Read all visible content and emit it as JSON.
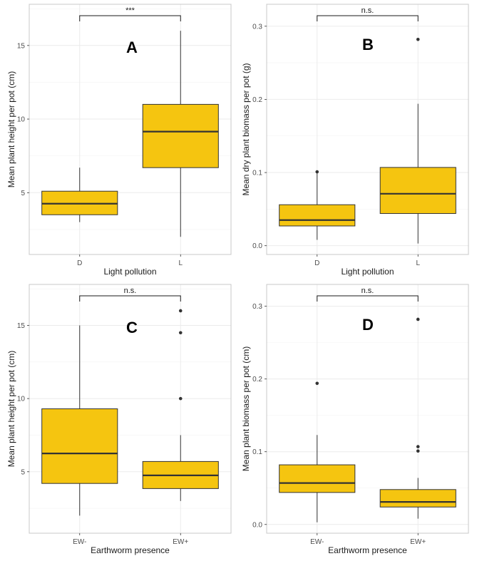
{
  "colors": {
    "box_fill": "#F5C510",
    "box_stroke": "#333333",
    "grid": "#EBEBEB",
    "panel_border": "#C8C8C8"
  },
  "chart_data": [
    {
      "type": "box",
      "panel_label": "A",
      "xlabel": "Light pollution",
      "ylabel": "Mean plant height per pot (cm)",
      "ylim": [
        0.8,
        17.8
      ],
      "yticks": [
        5,
        10,
        15
      ],
      "ytick_labels": [
        "5",
        "10",
        "15"
      ],
      "significance": "***",
      "categories": [
        "D",
        "L"
      ],
      "boxes": [
        {
          "category": "D",
          "whisker_low": 3.0,
          "q1": 3.5,
          "median": 4.25,
          "q3": 5.1,
          "whisker_high": 6.7,
          "outliers": []
        },
        {
          "category": "L",
          "whisker_low": 2.0,
          "q1": 6.7,
          "median": 9.15,
          "q3": 11.0,
          "whisker_high": 16.0,
          "outliers": []
        }
      ]
    },
    {
      "type": "box",
      "panel_label": "B",
      "xlabel": "Light pollution",
      "ylabel": "Mean dry plant biomass per pot (g)",
      "ylim": [
        -0.012,
        0.33
      ],
      "yticks": [
        0.0,
        0.1,
        0.2,
        0.3
      ],
      "ytick_labels": [
        "0.0",
        "0.1",
        "0.2",
        "0.3"
      ],
      "significance": "n.s.",
      "categories": [
        "D",
        "L"
      ],
      "boxes": [
        {
          "category": "D",
          "whisker_low": 0.008,
          "q1": 0.027,
          "median": 0.035,
          "q3": 0.056,
          "whisker_high": 0.101,
          "outliers": [
            0.101
          ]
        },
        {
          "category": "L",
          "whisker_low": 0.003,
          "q1": 0.044,
          "median": 0.071,
          "q3": 0.107,
          "whisker_high": 0.194,
          "outliers": [
            0.282
          ]
        }
      ]
    },
    {
      "type": "box",
      "panel_label": "C",
      "xlabel": "Earthworm presence",
      "ylabel": "Mean plant height per pot (cm)",
      "ylim": [
        0.8,
        17.8
      ],
      "yticks": [
        5,
        10,
        15
      ],
      "ytick_labels": [
        "5",
        "10",
        "15"
      ],
      "significance": "n.s.",
      "categories": [
        "EW-",
        "EW+"
      ],
      "boxes": [
        {
          "category": "EW-",
          "whisker_low": 2.0,
          "q1": 4.2,
          "median": 6.25,
          "q3": 9.3,
          "whisker_high": 15.0,
          "outliers": []
        },
        {
          "category": "EW+",
          "whisker_low": 3.0,
          "q1": 3.85,
          "median": 4.75,
          "q3": 5.7,
          "whisker_high": 7.5,
          "outliers": [
            10.0,
            14.5,
            16.0
          ]
        }
      ]
    },
    {
      "type": "box",
      "panel_label": "D",
      "xlabel": "Earthworm presence",
      "ylabel": "Mean plant biomass per pot (cm)",
      "ylim": [
        -0.012,
        0.33
      ],
      "yticks": [
        0.0,
        0.1,
        0.2,
        0.3
      ],
      "ytick_labels": [
        "0.0",
        "0.1",
        "0.2",
        "0.3"
      ],
      "significance": "n.s.",
      "categories": [
        "EW-",
        "EW+"
      ],
      "boxes": [
        {
          "category": "EW-",
          "whisker_low": 0.003,
          "q1": 0.044,
          "median": 0.057,
          "q3": 0.082,
          "whisker_high": 0.123,
          "outliers": [
            0.194
          ]
        },
        {
          "category": "EW+",
          "whisker_low": 0.008,
          "q1": 0.024,
          "median": 0.031,
          "q3": 0.048,
          "whisker_high": 0.064,
          "outliers": [
            0.101,
            0.107,
            0.282
          ]
        }
      ]
    }
  ]
}
